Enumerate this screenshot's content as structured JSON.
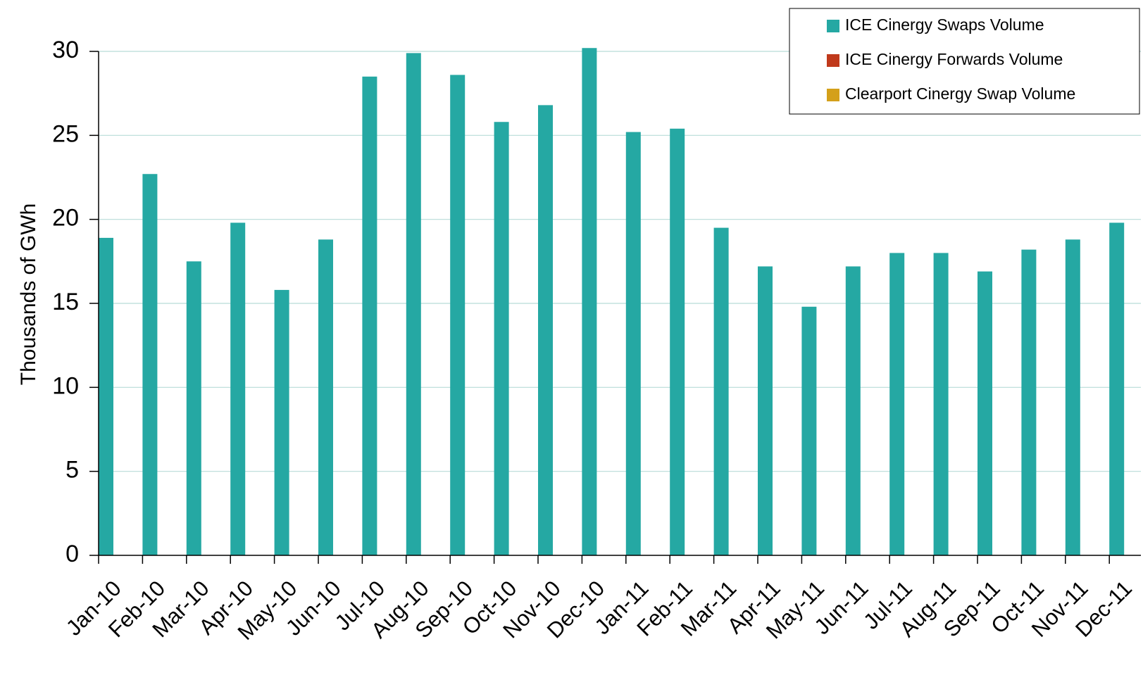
{
  "chart_data": {
    "type": "bar",
    "categories": [
      "Jan-10",
      "Feb-10",
      "Mar-10",
      "Apr-10",
      "May-10",
      "Jun-10",
      "Jul-10",
      "Aug-10",
      "Sep-10",
      "Oct-10",
      "Nov-10",
      "Dec-10",
      "Jan-11",
      "Feb-11",
      "Mar-11",
      "Apr-11",
      "May-11",
      "Jun-11",
      "Jul-11",
      "Aug-11",
      "Sep-11",
      "Oct-11",
      "Nov-11",
      "Dec-11"
    ],
    "series": [
      {
        "name": "ICE Cinergy Swaps Volume",
        "color": "#25A8A3",
        "values": [
          18.9,
          22.7,
          17.5,
          19.8,
          15.8,
          18.8,
          28.5,
          29.9,
          28.6,
          25.8,
          26.8,
          30.2,
          25.2,
          25.4,
          19.5,
          17.2,
          14.8,
          17.2,
          18.0,
          18.0,
          16.9,
          18.2,
          18.8,
          19.8
        ]
      },
      {
        "name": "ICE Cinergy Forwards Volume",
        "color": "#C0391B",
        "values": [
          0,
          0,
          0,
          0,
          0,
          0,
          0,
          0,
          0,
          0,
          0,
          0,
          0,
          0,
          0,
          0,
          0,
          0,
          0,
          0,
          0,
          0,
          0,
          0
        ]
      },
      {
        "name": "Clearport Cinergy Swap Volume",
        "color": "#D4A01A",
        "values": [
          0,
          0,
          0,
          0,
          0,
          0,
          0,
          0,
          0,
          0,
          0,
          0,
          0,
          0,
          0,
          0,
          0,
          0,
          0,
          0,
          0,
          0,
          0,
          0
        ]
      }
    ],
    "title": "",
    "xlabel": "",
    "ylabel": "Thousands of GWh",
    "ylim": [
      0,
      30
    ],
    "yticks": [
      0,
      5,
      10,
      15,
      20,
      25,
      30
    ],
    "grid": true,
    "grid_color": "#B8DCD8",
    "legend_position": "top-right"
  }
}
